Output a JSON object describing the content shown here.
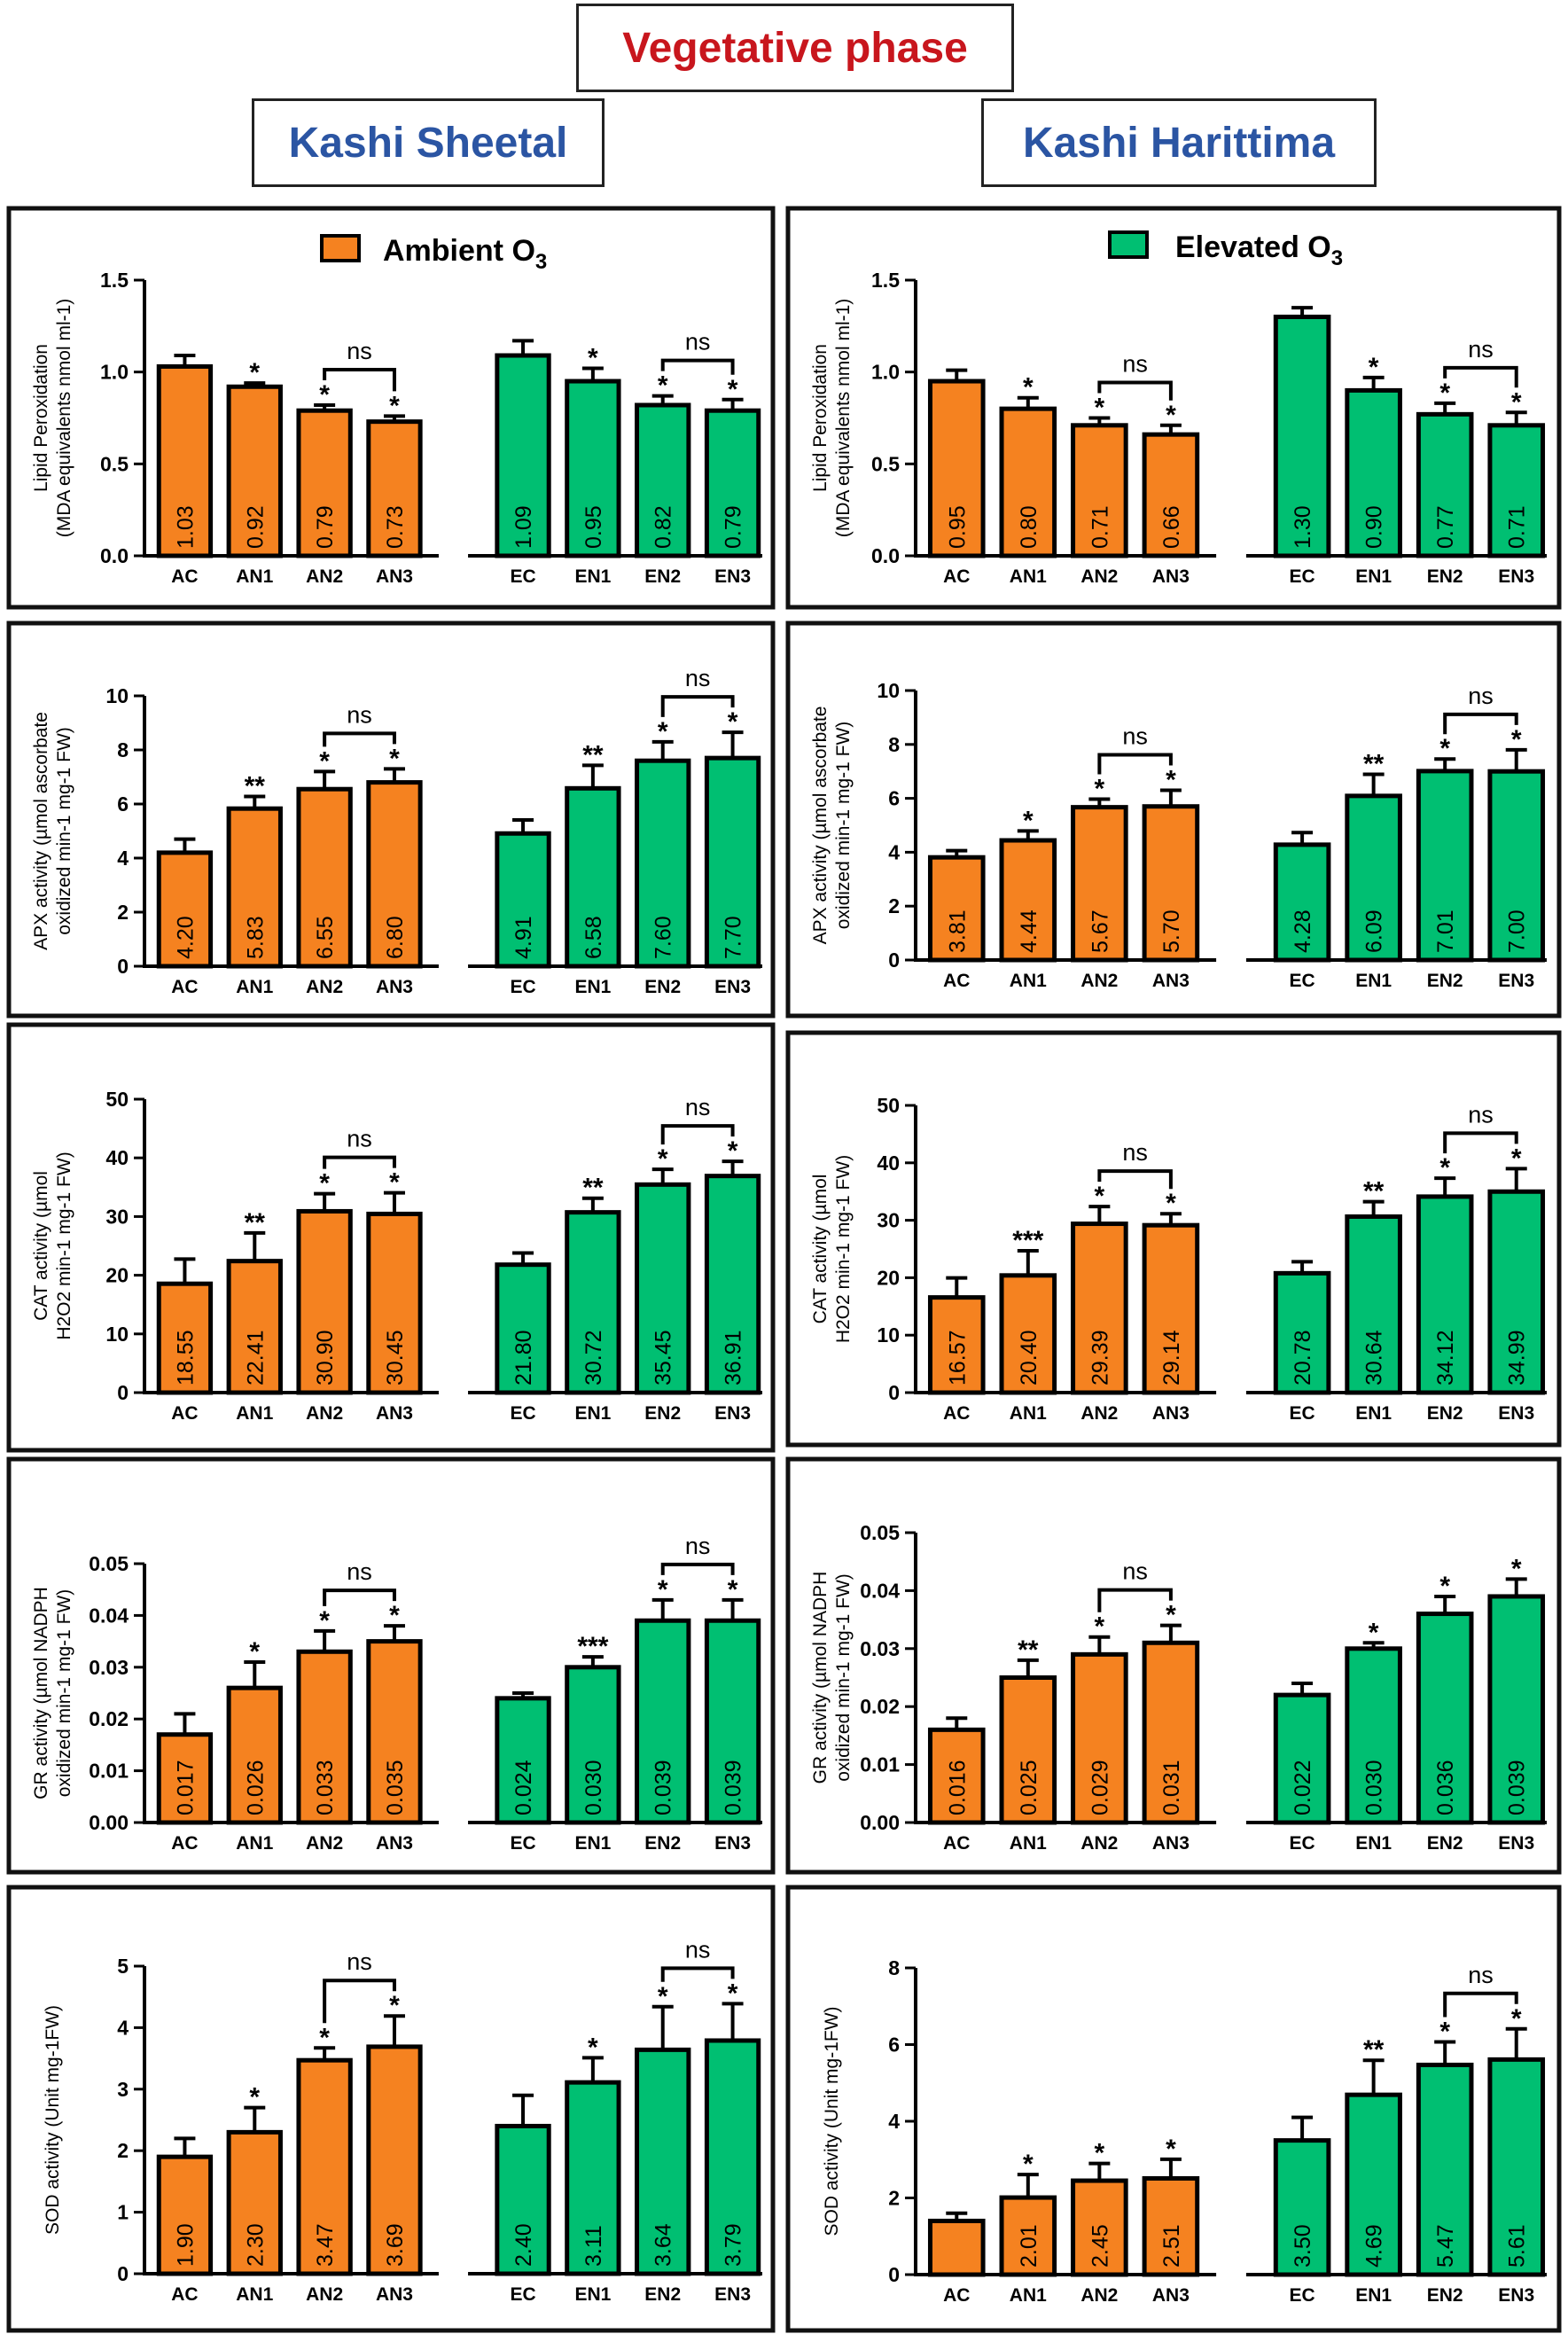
{
  "titles": {
    "main": "Vegetative phase",
    "left": "Kashi Sheetal",
    "right": "Kashi Harittima"
  },
  "legend": {
    "ambient": {
      "label": "Ambient O",
      "sub": "3",
      "color": "#F58220"
    },
    "elevated": {
      "label": "Elevated O",
      "sub": "3",
      "color": "#00BF72"
    }
  },
  "colors": {
    "ambient": "#F58220",
    "elevated": "#00BF72",
    "axis": "#000000"
  },
  "chart_data": [
    {
      "id": "lp-sheetal",
      "type": "bar",
      "title": "Lipid Peroxidation",
      "cultivar": "Kashi Sheetal",
      "ylabel": [
        "Lipid Peroxidation",
        "(MDA equivalents nmol ml-1)"
      ],
      "ylim": [
        0,
        1.5
      ],
      "yticks": [
        "0.0",
        "0.5",
        "1.0",
        "1.5"
      ],
      "categories": [
        "AC",
        "AN1",
        "AN2",
        "AN3",
        "EC",
        "EN1",
        "EN2",
        "EN3"
      ],
      "values": [
        1.03,
        0.92,
        0.79,
        0.73,
        1.09,
        0.95,
        0.82,
        0.79
      ],
      "labels": [
        "1.03",
        "0.92",
        "0.79",
        "0.73",
        "1.09",
        "0.95",
        "0.82",
        "0.79"
      ],
      "errors": [
        0.06,
        0.02,
        0.03,
        0.03,
        0.08,
        0.07,
        0.05,
        0.06
      ],
      "sig": [
        "",
        "*",
        "*",
        "*",
        "",
        "*",
        "*",
        "*"
      ],
      "brackets": [
        {
          "from": 2,
          "to": 3,
          "text": "ns"
        },
        {
          "from": 6,
          "to": 7,
          "text": "ns"
        }
      ]
    },
    {
      "id": "lp-harittima",
      "type": "bar",
      "title": "Lipid Peroxidation",
      "cultivar": "Kashi Harittima",
      "ylabel": [
        "Lipid Peroxidation",
        "(MDA equivalents nmol ml-1)"
      ],
      "ylim": [
        0,
        1.5
      ],
      "yticks": [
        "0.0",
        "0.5",
        "1.0",
        "1.5"
      ],
      "categories": [
        "AC",
        "AN1",
        "AN2",
        "AN3",
        "EC",
        "EN1",
        "EN2",
        "EN3"
      ],
      "values": [
        0.95,
        0.8,
        0.71,
        0.66,
        1.3,
        0.9,
        0.77,
        0.71
      ],
      "labels": [
        "0.95",
        "0.80",
        "0.71",
        "0.66",
        "1.30",
        "0.90",
        "0.77",
        "0.71"
      ],
      "errors": [
        0.06,
        0.06,
        0.04,
        0.05,
        0.05,
        0.07,
        0.06,
        0.07
      ],
      "sig": [
        "",
        "*",
        "*",
        "*",
        "",
        "*",
        "*",
        "*"
      ],
      "brackets": [
        {
          "from": 2,
          "to": 3,
          "text": "ns"
        },
        {
          "from": 6,
          "to": 7,
          "text": "ns"
        }
      ]
    },
    {
      "id": "apx-sheetal",
      "type": "bar",
      "title": "APX activity",
      "cultivar": "Kashi Sheetal",
      "ylabel": [
        "APX activity (µmol ascorbate",
        "oxidized min-1 mg-1 FW)"
      ],
      "ylim": [
        0,
        10
      ],
      "yticks": [
        "0",
        "2",
        "4",
        "6",
        "8",
        "10"
      ],
      "categories": [
        "AC",
        "AN1",
        "AN2",
        "AN3",
        "EC",
        "EN1",
        "EN2",
        "EN3"
      ],
      "values": [
        4.2,
        5.83,
        6.55,
        6.8,
        4.91,
        6.58,
        7.6,
        7.7
      ],
      "labels": [
        "4.20",
        "5.83",
        "6.55",
        "6.80",
        "4.91",
        "6.58",
        "7.60",
        "7.70"
      ],
      "errors": [
        0.5,
        0.45,
        0.65,
        0.5,
        0.5,
        0.85,
        0.7,
        0.95
      ],
      "sig": [
        "",
        "**",
        "*",
        "*",
        "",
        "**",
        "*",
        "*"
      ],
      "brackets": [
        {
          "from": 2,
          "to": 3,
          "text": "ns"
        },
        {
          "from": 6,
          "to": 7,
          "text": "ns"
        }
      ]
    },
    {
      "id": "apx-harittima",
      "type": "bar",
      "title": "APX activity",
      "cultivar": "Kashi Harittima",
      "ylabel": [
        "APX activity (µmol ascorbate",
        "oxidized min-1 mg-1 FW)"
      ],
      "ylim": [
        0,
        10
      ],
      "yticks": [
        "0",
        "2",
        "4",
        "6",
        "8",
        "10"
      ],
      "categories": [
        "AC",
        "AN1",
        "AN2",
        "AN3",
        "EC",
        "EN1",
        "EN2",
        "EN3"
      ],
      "values": [
        3.81,
        4.44,
        5.67,
        5.7,
        4.28,
        6.09,
        7.01,
        7.0
      ],
      "labels": [
        "3.81",
        "4.44",
        "5.67",
        "5.70",
        "4.28",
        "6.09",
        "7.01",
        "7.00"
      ],
      "errors": [
        0.25,
        0.35,
        0.3,
        0.6,
        0.45,
        0.8,
        0.45,
        0.8
      ],
      "sig": [
        "",
        "*",
        "*",
        "*",
        "",
        "**",
        "*",
        "*"
      ],
      "brackets": [
        {
          "from": 2,
          "to": 3,
          "text": "ns"
        },
        {
          "from": 6,
          "to": 7,
          "text": "ns"
        }
      ]
    },
    {
      "id": "cat-sheetal",
      "type": "bar",
      "title": "CAT activity",
      "cultivar": "Kashi Sheetal",
      "ylabel": [
        "CAT activity (µmol",
        "H2O2 min-1 mg-1 FW)"
      ],
      "ylim": [
        0,
        50
      ],
      "yticks": [
        "0",
        "10",
        "20",
        "30",
        "40",
        "50"
      ],
      "categories": [
        "AC",
        "AN1",
        "AN2",
        "AN3",
        "EC",
        "EN1",
        "EN2",
        "EN3"
      ],
      "values": [
        18.55,
        22.41,
        30.9,
        30.45,
        21.8,
        30.72,
        35.45,
        36.91
      ],
      "labels": [
        "18.55",
        "22.41",
        "30.90",
        "30.45",
        "21.80",
        "30.72",
        "35.45",
        "36.91"
      ],
      "errors": [
        4.2,
        4.8,
        3.0,
        3.6,
        2.0,
        2.4,
        2.6,
        2.5
      ],
      "sig": [
        "",
        "**",
        "*",
        "*",
        "",
        "**",
        "*",
        "*"
      ],
      "brackets": [
        {
          "from": 2,
          "to": 3,
          "text": "ns"
        },
        {
          "from": 6,
          "to": 7,
          "text": "ns"
        }
      ]
    },
    {
      "id": "cat-harittima",
      "type": "bar",
      "title": "CAT activity",
      "cultivar": "Kashi Harittima",
      "ylabel": [
        "CAT activity (µmol",
        "H2O2 min-1 mg-1 FW)"
      ],
      "ylim": [
        0,
        50
      ],
      "yticks": [
        "0",
        "10",
        "20",
        "30",
        "40",
        "50"
      ],
      "categories": [
        "AC",
        "AN1",
        "AN2",
        "AN3",
        "EC",
        "EN1",
        "EN2",
        "EN3"
      ],
      "values": [
        16.57,
        20.4,
        29.39,
        29.14,
        20.78,
        30.64,
        34.12,
        34.99
      ],
      "labels": [
        "16.57",
        "20.40",
        "29.39",
        "29.14",
        "20.78",
        "30.64",
        "34.12",
        "34.99"
      ],
      "errors": [
        3.4,
        4.3,
        3.0,
        2.0,
        2.0,
        2.6,
        3.2,
        4.0
      ],
      "sig": [
        "",
        "***",
        "*",
        "*",
        "",
        "**",
        "*",
        "*"
      ],
      "brackets": [
        {
          "from": 2,
          "to": 3,
          "text": "ns"
        },
        {
          "from": 6,
          "to": 7,
          "text": "ns"
        }
      ]
    },
    {
      "id": "gr-sheetal",
      "type": "bar",
      "title": "GR activity",
      "cultivar": "Kashi Sheetal",
      "ylabel": [
        "GR activity (µmol NADPH",
        "oxidized min-1 mg-1 FW)"
      ],
      "ylim": [
        0,
        0.05
      ],
      "yticks": [
        "0.00",
        "0.01",
        "0.02",
        "0.03",
        "0.04",
        "0.05"
      ],
      "categories": [
        "AC",
        "AN1",
        "AN2",
        "AN3",
        "EC",
        "EN1",
        "EN2",
        "EN3"
      ],
      "values": [
        0.017,
        0.026,
        0.033,
        0.035,
        0.024,
        0.03,
        0.039,
        0.039
      ],
      "labels": [
        "0.017",
        "0.026",
        "0.033",
        "0.035",
        "0.024",
        "0.030",
        "0.039",
        "0.039"
      ],
      "errors": [
        0.004,
        0.005,
        0.004,
        0.003,
        0.001,
        0.002,
        0.004,
        0.004
      ],
      "sig": [
        "",
        "*",
        "*",
        "*",
        "",
        "***",
        "*",
        "*"
      ],
      "brackets": [
        {
          "from": 2,
          "to": 3,
          "text": "ns"
        },
        {
          "from": 6,
          "to": 7,
          "text": "ns"
        }
      ]
    },
    {
      "id": "gr-harittima",
      "type": "bar",
      "title": "GR activity",
      "cultivar": "Kashi Harittima",
      "ylabel": [
        "GR activity (µmol NADPH",
        "oxidized min-1 mg-1 FW)"
      ],
      "ylim": [
        0,
        0.05
      ],
      "yticks": [
        "0.00",
        "0.01",
        "0.02",
        "0.03",
        "0.04",
        "0.05"
      ],
      "categories": [
        "AC",
        "AN1",
        "AN2",
        "AN3",
        "EC",
        "EN1",
        "EN2",
        "EN3"
      ],
      "values": [
        0.016,
        0.025,
        0.029,
        0.031,
        0.022,
        0.03,
        0.036,
        0.039
      ],
      "labels": [
        "0.016",
        "0.025",
        "0.029",
        "0.031",
        "0.022",
        "0.030",
        "0.036",
        "0.039"
      ],
      "errors": [
        0.002,
        0.003,
        0.003,
        0.003,
        0.002,
        0.001,
        0.003,
        0.003
      ],
      "sig": [
        "",
        "**",
        "*",
        "*",
        "",
        "*",
        "*",
        "*"
      ],
      "brackets": [
        {
          "from": 2,
          "to": 3,
          "text": "ns"
        }
      ]
    },
    {
      "id": "sod-sheetal",
      "type": "bar",
      "title": "SOD activity",
      "cultivar": "Kashi Sheetal",
      "ylabel": [
        "SOD activity (Unit mg-1FW)"
      ],
      "ylim": [
        0,
        5
      ],
      "yticks": [
        "0",
        "1",
        "2",
        "3",
        "4",
        "5"
      ],
      "categories": [
        "AC",
        "AN1",
        "AN2",
        "AN3",
        "EC",
        "EN1",
        "EN2",
        "EN3"
      ],
      "values": [
        1.9,
        2.3,
        3.47,
        3.69,
        2.4,
        3.11,
        3.64,
        3.79
      ],
      "labels": [
        "1.90",
        "2.30",
        "3.47",
        "3.69",
        "2.40",
        "3.11",
        "3.64",
        "3.79"
      ],
      "errors": [
        0.3,
        0.4,
        0.2,
        0.5,
        0.5,
        0.4,
        0.7,
        0.6
      ],
      "sig": [
        "",
        "*",
        "*",
        "*",
        "",
        "*",
        "*",
        "*"
      ],
      "brackets": [
        {
          "from": 2,
          "to": 3,
          "text": "ns"
        },
        {
          "from": 6,
          "to": 7,
          "text": "ns"
        }
      ]
    },
    {
      "id": "sod-harittima",
      "type": "bar",
      "title": "SOD activity",
      "cultivar": "Kashi Harittima",
      "ylabel": [
        "SOD activity (Unit mg-1FW)"
      ],
      "ylim": [
        0,
        8
      ],
      "yticks": [
        "0",
        "2",
        "4",
        "6",
        "8"
      ],
      "categories": [
        "AC",
        "AN1",
        "AN2",
        "AN3",
        "EC",
        "EN1",
        "EN2",
        "EN3"
      ],
      "values": [
        1.4,
        2.01,
        2.45,
        2.51,
        3.5,
        4.69,
        5.47,
        5.61
      ],
      "labels": [
        "",
        "2.01",
        "2.45",
        "2.51",
        "3.50",
        "4.69",
        "5.47",
        "5.61"
      ],
      "errors": [
        0.2,
        0.6,
        0.45,
        0.5,
        0.6,
        0.9,
        0.6,
        0.8
      ],
      "sig": [
        "",
        "*",
        "*",
        "*",
        "",
        "**",
        "*",
        "*"
      ],
      "brackets": [
        {
          "from": 6,
          "to": 7,
          "text": "ns"
        }
      ]
    }
  ]
}
